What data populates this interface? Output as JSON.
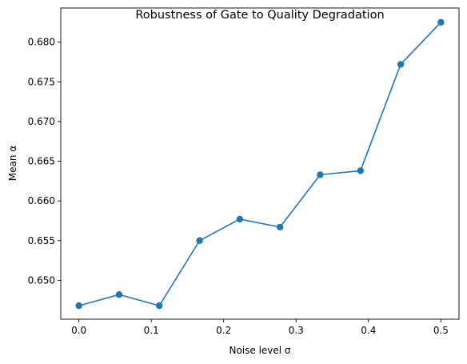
{
  "chart_data": {
    "type": "line",
    "title": "Robustness of Gate to Quality Degradation",
    "xlabel": "Noise level σ",
    "ylabel": "Mean α",
    "xlim": [
      -0.025,
      0.525
    ],
    "ylim": [
      0.6451,
      0.6843
    ],
    "x_ticks": [
      0.0,
      0.1,
      0.2,
      0.3,
      0.4,
      0.5
    ],
    "x_tick_labels": [
      "0.0",
      "0.1",
      "0.2",
      "0.3",
      "0.4",
      "0.5"
    ],
    "y_ticks": [
      0.65,
      0.655,
      0.66,
      0.665,
      0.67,
      0.675,
      0.68
    ],
    "y_tick_labels": [
      "0.650",
      "0.655",
      "0.660",
      "0.665",
      "0.670",
      "0.675",
      "0.680"
    ],
    "grid": false,
    "legend": "none",
    "series": [
      {
        "color": "#1f77b4",
        "marker": "circle",
        "x": [
          0.0,
          0.0556,
          0.1111,
          0.1667,
          0.2222,
          0.2778,
          0.3333,
          0.3889,
          0.4444,
          0.5
        ],
        "y": [
          0.6468,
          0.6482,
          0.6468,
          0.655,
          0.6577,
          0.6567,
          0.6633,
          0.6638,
          0.6772,
          0.6825
        ]
      }
    ]
  }
}
